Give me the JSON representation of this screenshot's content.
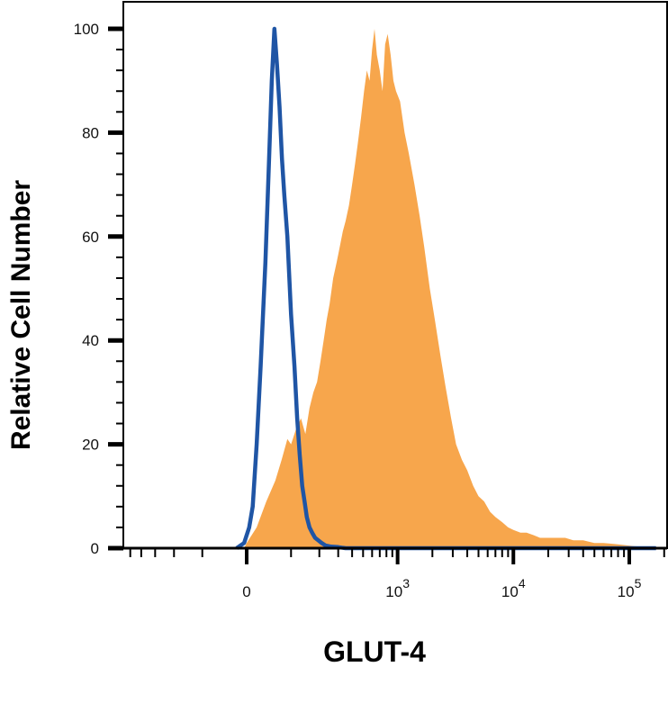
{
  "chart_data": {
    "type": "area",
    "xlabel": "GLUT-4",
    "ylabel": "Relative Cell Number",
    "x_scale": "biexponential",
    "ylim": [
      0,
      100
    ],
    "y_ticks": [
      {
        "value": 0,
        "label": "0"
      },
      {
        "value": 20,
        "label": "20"
      },
      {
        "value": 40,
        "label": "40"
      },
      {
        "value": 60,
        "label": "60"
      },
      {
        "value": 80,
        "label": "80"
      },
      {
        "value": 100,
        "label": "100"
      }
    ],
    "x_ticks": [
      {
        "value": 0,
        "base": "0",
        "exp": ""
      },
      {
        "value": 1000,
        "base": "10",
        "exp": "3"
      },
      {
        "value": 10000,
        "base": "10",
        "exp": "4"
      },
      {
        "value": 100000,
        "base": "10",
        "exp": "5"
      }
    ],
    "grid": false,
    "legend": "none",
    "series": [
      {
        "style": "filled",
        "color": "#F7A64C",
        "points": [
          [
            -5,
            0
          ],
          [
            0,
            1
          ],
          [
            20,
            4
          ],
          [
            40,
            9
          ],
          [
            60,
            13
          ],
          [
            75,
            17
          ],
          [
            90,
            21
          ],
          [
            100,
            20
          ],
          [
            115,
            23
          ],
          [
            130,
            25
          ],
          [
            145,
            22
          ],
          [
            160,
            27
          ],
          [
            175,
            30
          ],
          [
            190,
            32
          ],
          [
            205,
            36
          ],
          [
            220,
            40
          ],
          [
            235,
            44
          ],
          [
            250,
            47
          ],
          [
            270,
            52
          ],
          [
            290,
            55
          ],
          [
            310,
            58
          ],
          [
            330,
            61
          ],
          [
            350,
            63
          ],
          [
            375,
            66
          ],
          [
            400,
            70
          ],
          [
            425,
            74
          ],
          [
            450,
            78
          ],
          [
            480,
            83
          ],
          [
            510,
            88
          ],
          [
            540,
            92
          ],
          [
            570,
            90
          ],
          [
            600,
            96
          ],
          [
            630,
            100
          ],
          [
            660,
            95
          ],
          [
            700,
            92
          ],
          [
            740,
            88
          ],
          [
            780,
            97
          ],
          [
            820,
            99
          ],
          [
            870,
            95
          ],
          [
            920,
            90
          ],
          [
            970,
            88
          ],
          [
            1050,
            86
          ],
          [
            1150,
            80
          ],
          [
            1250,
            76
          ],
          [
            1400,
            70
          ],
          [
            1550,
            64
          ],
          [
            1700,
            58
          ],
          [
            1900,
            50
          ],
          [
            2100,
            44
          ],
          [
            2350,
            37
          ],
          [
            2600,
            31
          ],
          [
            2900,
            25
          ],
          [
            3200,
            20
          ],
          [
            3600,
            17
          ],
          [
            4000,
            15
          ],
          [
            4500,
            12
          ],
          [
            5000,
            10
          ],
          [
            5600,
            9
          ],
          [
            6300,
            7
          ],
          [
            7000,
            6
          ],
          [
            8000,
            5
          ],
          [
            9000,
            4
          ],
          [
            10000,
            3.5
          ],
          [
            11500,
            3
          ],
          [
            13000,
            3
          ],
          [
            15000,
            2.5
          ],
          [
            17000,
            2
          ],
          [
            20000,
            2
          ],
          [
            24000,
            2
          ],
          [
            28000,
            2
          ],
          [
            33000,
            1.5
          ],
          [
            40000,
            1.5
          ],
          [
            50000,
            1
          ],
          [
            60000,
            1
          ],
          [
            75000,
            0.8
          ],
          [
            90000,
            0.6
          ],
          [
            110000,
            0.4
          ],
          [
            140000,
            0.2
          ],
          [
            170000,
            0
          ]
        ]
      },
      {
        "style": "line",
        "color": "#1F55A5",
        "points": [
          [
            -20,
            0
          ],
          [
            -5,
            1
          ],
          [
            5,
            4
          ],
          [
            12,
            8
          ],
          [
            20,
            20
          ],
          [
            28,
            35
          ],
          [
            38,
            55
          ],
          [
            46,
            75
          ],
          [
            52,
            90
          ],
          [
            58,
            100
          ],
          [
            64,
            93
          ],
          [
            70,
            85
          ],
          [
            76,
            75
          ],
          [
            82,
            68
          ],
          [
            90,
            60
          ],
          [
            100,
            45
          ],
          [
            110,
            35
          ],
          [
            118,
            25
          ],
          [
            126,
            18
          ],
          [
            134,
            12
          ],
          [
            142,
            9
          ],
          [
            150,
            6
          ],
          [
            160,
            4
          ],
          [
            170,
            3
          ],
          [
            182,
            2
          ],
          [
            195,
            1.5
          ],
          [
            210,
            1
          ],
          [
            230,
            0.5
          ],
          [
            260,
            0.3
          ],
          [
            300,
            0.2
          ],
          [
            350,
            0
          ],
          [
            500,
            0
          ],
          [
            2000,
            0
          ],
          [
            10000,
            0
          ],
          [
            170000,
            0
          ]
        ]
      }
    ]
  }
}
